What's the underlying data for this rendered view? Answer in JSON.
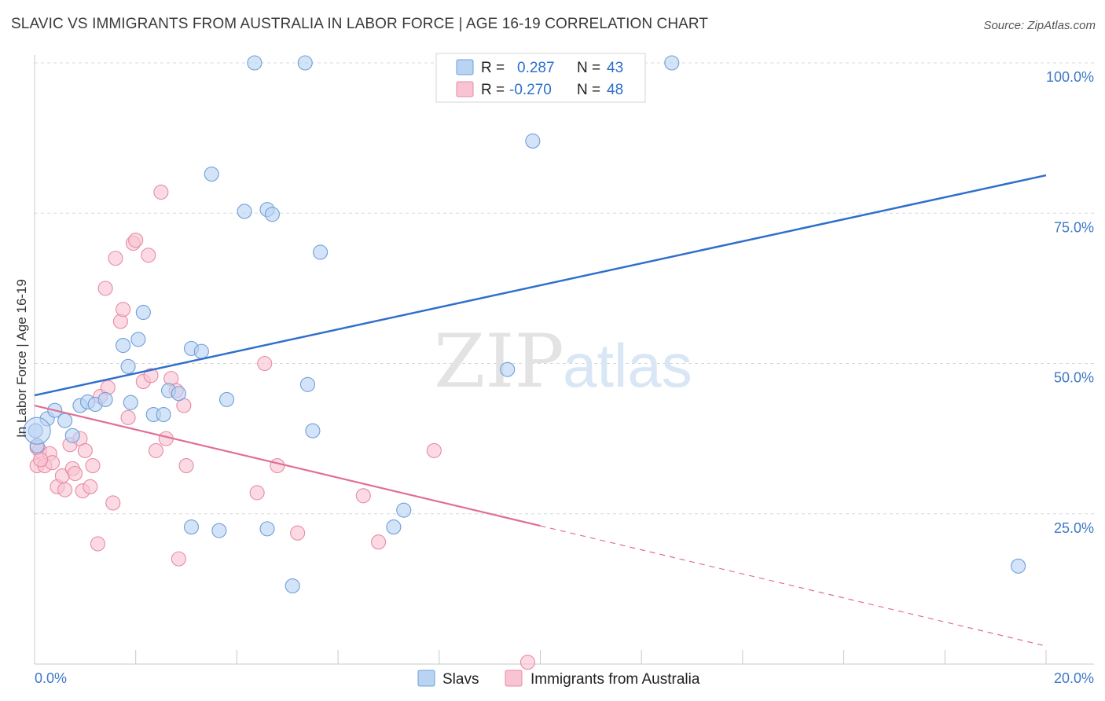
{
  "header": {
    "title": "SLAVIC VS IMMIGRANTS FROM AUSTRALIA IN LABOR FORCE | AGE 16-19 CORRELATION CHART",
    "source": "Source: ZipAtlas.com"
  },
  "watermark": {
    "zip": "ZIP",
    "atlas": "atlas"
  },
  "legend": {
    "r_label": "R =",
    "n_label": "N =",
    "rows": [
      {
        "r": "0.287",
        "n": "43"
      },
      {
        "r": "-0.270",
        "n": "48"
      }
    ]
  },
  "colors": {
    "slavs_fill": "#b9d3f3",
    "slavs_stroke": "#6f9fd8",
    "slavs_line": "#2f6fcc",
    "aus_fill": "#f8c3d2",
    "aus_stroke": "#e88aa6",
    "aus_line": "#e06f94",
    "tick_text": "#3e79c6",
    "grid": "#d8d8d8"
  },
  "chart_data": {
    "type": "scatter",
    "title": "SLAVIC VS IMMIGRANTS FROM AUSTRALIA IN LABOR FORCE | AGE 16-19 CORRELATION CHART",
    "xlabel": "",
    "ylabel": "In Labor Force | Age 16-19",
    "xlim": [
      0,
      20
    ],
    "ylim": [
      0,
      100
    ],
    "x_tick_labels": [
      "0.0%",
      "20.0%"
    ],
    "y_ticks": [
      25,
      50,
      75,
      100
    ],
    "y_tick_labels": [
      "25.0%",
      "50.0%",
      "75.0%",
      "100.0%"
    ],
    "grid": true,
    "legend_position": "top-center",
    "series": [
      {
        "name": "Slavs",
        "r": 0.287,
        "n": 43,
        "trend": {
          "x0": 0,
          "y0": 44.7,
          "x1": 20,
          "y1": 81.3,
          "dashed_from_x": null
        },
        "points": [
          [
            0.05,
            36.3
          ],
          [
            0.25,
            40.8
          ],
          [
            0.4,
            42.2
          ],
          [
            0.6,
            40.5
          ],
          [
            0.75,
            38.0
          ],
          [
            0.9,
            43.0
          ],
          [
            1.05,
            43.6
          ],
          [
            1.2,
            43.2
          ],
          [
            1.4,
            44.0
          ],
          [
            1.85,
            49.5
          ],
          [
            1.75,
            53.0
          ],
          [
            1.9,
            43.5
          ],
          [
            2.05,
            54.0
          ],
          [
            2.15,
            58.5
          ],
          [
            2.35,
            41.5
          ],
          [
            2.55,
            41.5
          ],
          [
            2.65,
            45.5
          ],
          [
            2.85,
            45.0
          ],
          [
            3.1,
            52.5
          ],
          [
            3.3,
            52.0
          ],
          [
            3.5,
            81.5
          ],
          [
            3.8,
            44.0
          ],
          [
            4.15,
            75.3
          ],
          [
            4.35,
            100.0
          ],
          [
            4.6,
            75.6
          ],
          [
            4.7,
            74.8
          ],
          [
            4.6,
            22.5
          ],
          [
            3.1,
            22.8
          ],
          [
            3.65,
            22.2
          ],
          [
            5.1,
            13.0
          ],
          [
            5.35,
            100.0
          ],
          [
            5.4,
            46.5
          ],
          [
            5.5,
            38.8
          ],
          [
            5.65,
            68.5
          ],
          [
            7.1,
            22.8
          ],
          [
            7.3,
            25.6
          ],
          [
            9.35,
            49.0
          ],
          [
            9.5,
            100.0
          ],
          [
            10.5,
            100.0
          ],
          [
            9.85,
            87.0
          ],
          [
            12.6,
            100.0
          ],
          [
            19.45,
            16.3
          ],
          [
            0.02,
            38.8
          ]
        ]
      },
      {
        "name": "Immigrants from Australia",
        "r": -0.27,
        "n": 48,
        "trend": {
          "x0": 0,
          "y0": 43.0,
          "x1": 20,
          "y1": 3.0,
          "dashed_from_x": 10.0
        },
        "points": [
          [
            0.05,
            33.0
          ],
          [
            0.1,
            35.5
          ],
          [
            0.2,
            33.0
          ],
          [
            0.3,
            35.0
          ],
          [
            0.35,
            33.5
          ],
          [
            0.45,
            29.5
          ],
          [
            0.55,
            31.3
          ],
          [
            0.6,
            29.0
          ],
          [
            0.7,
            36.5
          ],
          [
            0.75,
            32.5
          ],
          [
            0.8,
            31.7
          ],
          [
            0.9,
            37.5
          ],
          [
            0.95,
            28.8
          ],
          [
            1.0,
            35.5
          ],
          [
            1.1,
            29.5
          ],
          [
            1.15,
            33.0
          ],
          [
            1.25,
            20.0
          ],
          [
            1.3,
            44.5
          ],
          [
            1.4,
            62.5
          ],
          [
            1.45,
            46.0
          ],
          [
            1.55,
            26.8
          ],
          [
            1.6,
            67.5
          ],
          [
            1.7,
            57.0
          ],
          [
            1.75,
            59.0
          ],
          [
            1.85,
            41.0
          ],
          [
            1.95,
            70.0
          ],
          [
            2.0,
            70.5
          ],
          [
            2.15,
            47.0
          ],
          [
            2.25,
            68.0
          ],
          [
            2.3,
            48.0
          ],
          [
            2.4,
            35.5
          ],
          [
            2.5,
            78.5
          ],
          [
            2.6,
            37.5
          ],
          [
            2.7,
            47.5
          ],
          [
            2.8,
            45.5
          ],
          [
            2.85,
            17.5
          ],
          [
            2.95,
            43.0
          ],
          [
            3.0,
            33.0
          ],
          [
            4.4,
            28.5
          ],
          [
            4.55,
            50.0
          ],
          [
            4.8,
            33.0
          ],
          [
            5.2,
            21.8
          ],
          [
            6.5,
            28.0
          ],
          [
            6.8,
            20.3
          ],
          [
            7.9,
            35.5
          ],
          [
            9.75,
            0.3
          ],
          [
            0.05,
            36.0
          ],
          [
            0.12,
            34.0
          ]
        ]
      }
    ]
  },
  "bottom_legend": {
    "items": [
      {
        "label": "Slavs"
      },
      {
        "label": "Immigrants from Australia"
      }
    ]
  }
}
